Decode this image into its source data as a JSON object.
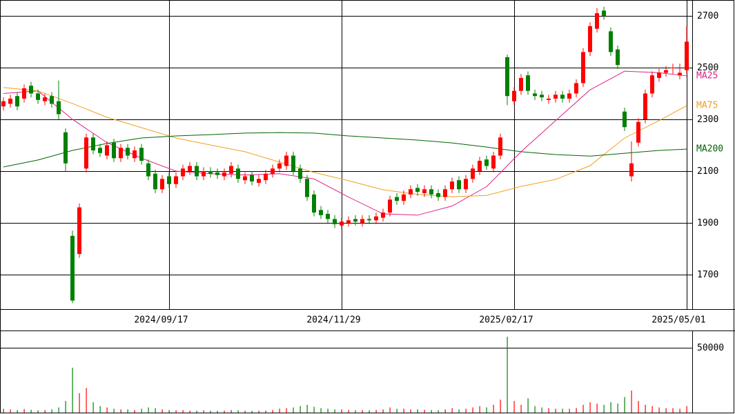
{
  "chart_data": [
    {
      "type": "candlestick",
      "xlim": [
        -0.5,
        99.8
      ],
      "xticks": [
        {
          "value": 24,
          "label": "2024/09/17"
        },
        {
          "value": 49,
          "label": "2024/11/29"
        },
        {
          "value": 74,
          "label": "2025/02/17"
        },
        {
          "value": 99,
          "label": "2025/05/01"
        }
      ],
      "ylim": [
        1567,
        2761
      ],
      "yticks": [
        1700,
        1900,
        2100,
        2300,
        2500,
        2700
      ],
      "up_color": "#ff0000",
      "down_color": "#008000",
      "open": [
        2350,
        2360,
        2390,
        2380,
        2430,
        2400,
        2370,
        2390,
        2370,
        2250,
        1850,
        1780,
        2110,
        2230,
        2190,
        2160,
        2210,
        2150,
        2190,
        2150,
        2190,
        2130,
        2090,
        2030,
        2080,
        2050,
        2080,
        2100,
        2120,
        2080,
        2100,
        2095,
        2080,
        2090,
        2110,
        2065,
        2085,
        2055,
        2065,
        2090,
        2110,
        2120,
        2160,
        2110,
        2070,
        2010,
        1950,
        1935,
        1915,
        1890,
        1900,
        1915,
        1900,
        1915,
        1910,
        1920,
        1940,
        2000,
        1985,
        2010,
        2035,
        2015,
        2030,
        2015,
        2000,
        2030,
        2065,
        2030,
        2070,
        2100,
        2145,
        2110,
        2160,
        2540,
        2370,
        2410,
        2470,
        2400,
        2395,
        2375,
        2380,
        2395,
        2380,
        2400,
        2440,
        2560,
        2650,
        2720,
        2640,
        2570,
        2330,
        2080,
        2210,
        2300,
        2400,
        2460,
        2480,
        2500,
        2470,
        2490
      ],
      "high": [
        2385,
        2395,
        2405,
        2435,
        2445,
        2415,
        2400,
        2405,
        2450,
        2265,
        1870,
        1975,
        2245,
        2245,
        2205,
        2215,
        2225,
        2205,
        2205,
        2195,
        2205,
        2145,
        2105,
        2085,
        2095,
        2095,
        2125,
        2135,
        2135,
        2115,
        2115,
        2110,
        2110,
        2135,
        2125,
        2095,
        2100,
        2085,
        2105,
        2125,
        2145,
        2175,
        2175,
        2125,
        2085,
        2025,
        1965,
        1950,
        1930,
        1920,
        1925,
        1930,
        1930,
        1930,
        1940,
        1955,
        2005,
        2015,
        2025,
        2045,
        2050,
        2045,
        2045,
        2030,
        2045,
        2075,
        2080,
        2085,
        2125,
        2155,
        2160,
        2175,
        2245,
        2550,
        2425,
        2475,
        2485,
        2415,
        2410,
        2395,
        2410,
        2410,
        2415,
        2455,
        2575,
        2675,
        2730,
        2735,
        2655,
        2585,
        2345,
        2215,
        2305,
        2415,
        2485,
        2495,
        2505,
        2515,
        2515,
        2660
      ],
      "low": [
        2335,
        2345,
        2335,
        2365,
        2385,
        2360,
        2355,
        2345,
        2300,
        2100,
        1590,
        1765,
        2095,
        2165,
        2155,
        2145,
        2135,
        2135,
        2145,
        2135,
        2125,
        2065,
        2015,
        2015,
        2035,
        2035,
        2065,
        2085,
        2065,
        2065,
        2075,
        2070,
        2065,
        2075,
        2055,
        2050,
        2045,
        2040,
        2050,
        2075,
        2095,
        2105,
        2085,
        2055,
        1985,
        1925,
        1915,
        1900,
        1880,
        1875,
        1885,
        1890,
        1885,
        1895,
        1895,
        1905,
        1925,
        1970,
        1970,
        1995,
        2005,
        2000,
        1995,
        1985,
        1985,
        2015,
        2015,
        2015,
        2055,
        2085,
        2105,
        2095,
        2145,
        2355,
        2355,
        2395,
        2395,
        2375,
        2370,
        2360,
        2365,
        2365,
        2365,
        2385,
        2425,
        2545,
        2635,
        2685,
        2545,
        2495,
        2255,
        2060,
        2195,
        2285,
        2385,
        2445,
        2465,
        2475,
        2455,
        2475
      ],
      "close": [
        2370,
        2380,
        2350,
        2420,
        2400,
        2375,
        2385,
        2360,
        2320,
        2130,
        1600,
        1960,
        2230,
        2180,
        2170,
        2200,
        2150,
        2190,
        2160,
        2180,
        2140,
        2080,
        2030,
        2070,
        2050,
        2080,
        2110,
        2120,
        2080,
        2100,
        2090,
        2085,
        2095,
        2120,
        2070,
        2080,
        2060,
        2070,
        2090,
        2110,
        2130,
        2160,
        2100,
        2070,
        2000,
        1940,
        1930,
        1915,
        1895,
        1905,
        1910,
        1905,
        1915,
        1910,
        1925,
        1940,
        1990,
        1985,
        2010,
        2030,
        2020,
        2030,
        2010,
        2000,
        2030,
        2060,
        2030,
        2070,
        2110,
        2140,
        2120,
        2160,
        2230,
        2390,
        2410,
        2460,
        2410,
        2390,
        2385,
        2380,
        2395,
        2380,
        2400,
        2440,
        2560,
        2660,
        2710,
        2700,
        2560,
        2510,
        2270,
        2130,
        2290,
        2400,
        2470,
        2480,
        2490,
        2500,
        2480,
        2600
      ],
      "series": [
        {
          "name": "MA25",
          "color": "#e0208a",
          "x": [
            0,
            5,
            10,
            15,
            20,
            25,
            30,
            35,
            40,
            45,
            50,
            55,
            60,
            65,
            70,
            75,
            80,
            85,
            90,
            95,
            99
          ],
          "values": [
            2400,
            2410,
            2300,
            2210,
            2150,
            2100,
            2090,
            2085,
            2090,
            2070,
            2000,
            1935,
            1930,
            1965,
            2040,
            2175,
            2295,
            2414,
            2486,
            2480,
            2468
          ]
        },
        {
          "name": "MA75",
          "color": "#f0a020",
          "x": [
            0,
            5,
            10,
            15,
            20,
            25,
            30,
            35,
            40,
            45,
            50,
            55,
            60,
            65,
            70,
            75,
            80,
            85,
            90,
            95,
            99
          ],
          "values": [
            2423,
            2410,
            2361,
            2308,
            2268,
            2228,
            2201,
            2175,
            2135,
            2095,
            2063,
            2028,
            2010,
            2001,
            2006,
            2041,
            2068,
            2121,
            2228,
            2295,
            2353
          ]
        },
        {
          "name": "MA200",
          "color": "#006400",
          "x": [
            0,
            5,
            10,
            15,
            20,
            25,
            30,
            35,
            40,
            45,
            50,
            55,
            60,
            65,
            70,
            75,
            80,
            85,
            90,
            95,
            99
          ],
          "values": [
            2116,
            2143,
            2180,
            2207,
            2228,
            2236,
            2241,
            2247,
            2249,
            2247,
            2236,
            2228,
            2220,
            2209,
            2193,
            2175,
            2164,
            2158,
            2169,
            2180,
            2185
          ]
        }
      ]
    },
    {
      "type": "bar",
      "xlim": [
        -0.5,
        99.8
      ],
      "ylim": [
        0,
        62766
      ],
      "yticks": [
        50000
      ],
      "values": [
        3000,
        2500,
        2000,
        2800,
        2200,
        1800,
        2000,
        2500,
        4000,
        9000,
        34600,
        15000,
        19000,
        8000,
        5000,
        4000,
        3000,
        2500,
        2500,
        2000,
        3000,
        4000,
        3500,
        2500,
        2000,
        1800,
        2000,
        1500,
        1500,
        1800,
        1500,
        1400,
        1500,
        2000,
        1800,
        1500,
        1400,
        1500,
        1600,
        2000,
        3000,
        3500,
        4000,
        5000,
        6000,
        4500,
        3500,
        3000,
        2500,
        2500,
        2000,
        1800,
        2000,
        1800,
        2000,
        2500,
        4000,
        3000,
        3000,
        2500,
        2500,
        2200,
        2000,
        1800,
        2500,
        3500,
        2500,
        3000,
        4000,
        5000,
        4000,
        6000,
        10000,
        58500,
        9000,
        6000,
        11000,
        5000,
        4000,
        3500,
        3000,
        3000,
        3000,
        3500,
        6000,
        8000,
        7000,
        6000,
        8000,
        7000,
        12000,
        17000,
        9000,
        6000,
        5000,
        4000,
        3500,
        3500,
        3000,
        5000
      ]
    }
  ]
}
